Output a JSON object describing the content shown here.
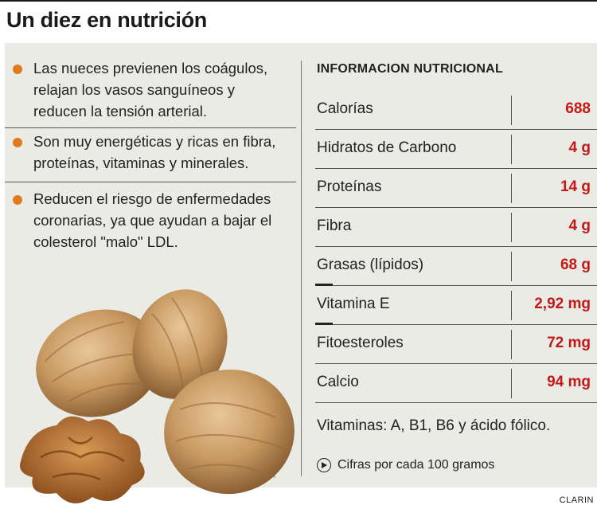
{
  "header": {
    "title": "Un diez en nutrición"
  },
  "bullets": [
    "Las nueces previenen los coágulos, relajan los vasos sanguíneos y reducen la tensión arterial.",
    "Son muy energéticas y ricas en fibra, proteínas, vitaminas y minerales.",
    "Reducen el riesgo de enfermedades coronarias, ya que ayudan a bajar el colesterol \"malo\" LDL."
  ],
  "nutrition": {
    "title": "INFORMACION NUTRICIONAL",
    "rows": [
      {
        "name": "Calorías",
        "value": "688"
      },
      {
        "name": "Hidratos de Carbono",
        "value": "4 g"
      },
      {
        "name": "Proteínas",
        "value": "14 g"
      },
      {
        "name": "Fibra",
        "value": "4 g"
      },
      {
        "name": "Grasas (lípidos)",
        "value": "68 g"
      },
      {
        "name": "Vitamina E",
        "value": "2,92 mg"
      },
      {
        "name": "Fitoesteroles",
        "value": "72 mg"
      },
      {
        "name": "Calcio",
        "value": "94 mg"
      }
    ],
    "vitamins": "Vitaminas: A, B1, B6 y ácido fólico.",
    "footnote": "Cifras por cada 100 gramos",
    "footnote_icon": "play-circle-icon"
  },
  "colors": {
    "bullet": "#e07a1e",
    "value": "#c41818",
    "panel": "#ebebe6"
  },
  "image": "walnuts-illustration",
  "credit": "CLARIN"
}
